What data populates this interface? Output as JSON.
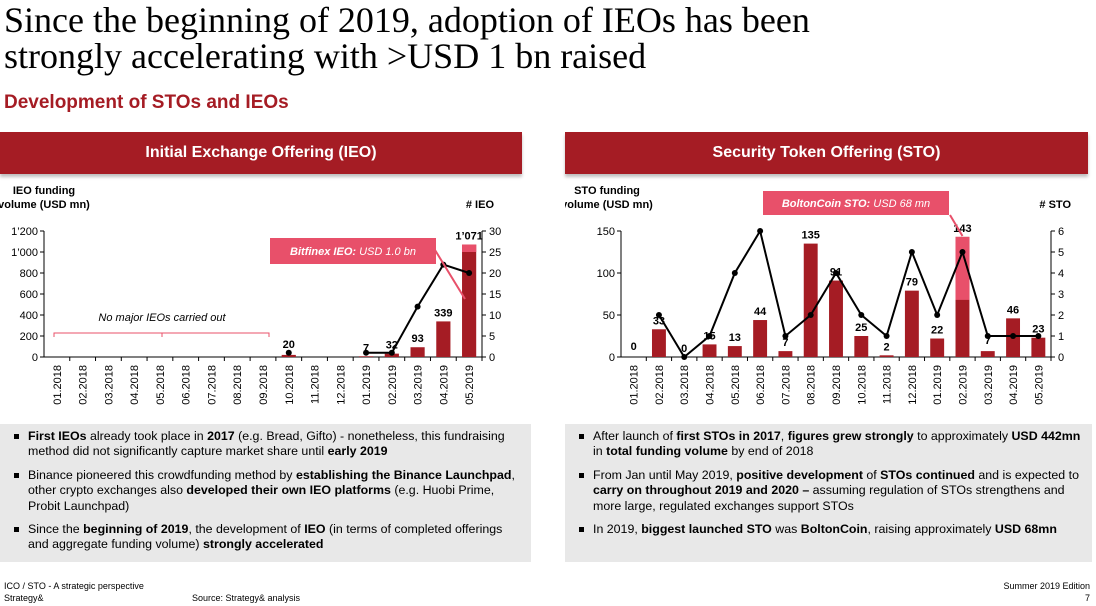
{
  "page": {
    "title_line1": "Since the beginning of 2019, adoption of IEOs has been",
    "title_line2": "strongly accelerating with >USD 1 bn raised",
    "subtitle": "Development of STOs and IEOs"
  },
  "left_panel": {
    "header": "Initial Exchange Offering (IEO)",
    "bullets": [
      [
        {
          "t": "First IEOs",
          "b": true
        },
        {
          "t": " already took place in ",
          "b": false
        },
        {
          "t": "2017",
          "b": true
        },
        {
          "t": " (e.g. Bread, Gifto) - nonetheless, this fundraising method did not significantly capture market share until ",
          "b": false
        },
        {
          "t": "early 2019",
          "b": true
        }
      ],
      [
        {
          "t": "Binance pioneered this crowdfunding method by ",
          "b": false
        },
        {
          "t": "establishing the Binance Launchpad",
          "b": true
        },
        {
          "t": ", other crypto exchanges also ",
          "b": false
        },
        {
          "t": "developed their own IEO platforms",
          "b": true
        },
        {
          "t": " (e.g. Huobi Prime, Probit Launchpad)",
          "b": false
        }
      ],
      [
        {
          "t": "Since the ",
          "b": false
        },
        {
          "t": "beginning of 2019",
          "b": true
        },
        {
          "t": ", the development of ",
          "b": false
        },
        {
          "t": "IEO",
          "b": true
        },
        {
          "t": " (in terms of completed offerings and aggregate funding volume) ",
          "b": false
        },
        {
          "t": "strongly accelerated",
          "b": true
        }
      ]
    ]
  },
  "right_panel": {
    "header": "Security Token Offering (STO)",
    "bullets": [
      [
        {
          "t": "After launch of ",
          "b": false
        },
        {
          "t": "first STOs in 2017",
          "b": true
        },
        {
          "t": ", ",
          "b": false
        },
        {
          "t": "figures grew strongly",
          "b": true
        },
        {
          "t": " to approximately ",
          "b": false
        },
        {
          "t": "USD 442mn",
          "b": true
        },
        {
          "t": " in ",
          "b": false
        },
        {
          "t": "total funding volume",
          "b": true
        },
        {
          "t": " by end of 2018",
          "b": false
        }
      ],
      [
        {
          "t": "From Jan until May 2019, ",
          "b": false
        },
        {
          "t": "positive development",
          "b": true
        },
        {
          "t": " of ",
          "b": false
        },
        {
          "t": "STOs continued",
          "b": true
        },
        {
          "t": " and is expected to ",
          "b": false
        },
        {
          "t": "carry on throughout 2019 and 2020 –",
          "b": true
        },
        {
          "t": " assuming regulation of STOs strengthens and more large, regulated exchanges support STOs",
          "b": false
        }
      ],
      [
        {
          "t": "In 2019, ",
          "b": false
        },
        {
          "t": "biggest launched STO",
          "b": true
        },
        {
          "t": " was ",
          "b": false
        },
        {
          "t": "BoltonCoin",
          "b": true
        },
        {
          "t": ", raising approximately ",
          "b": false
        },
        {
          "t": "USD 68mn",
          "b": true
        }
      ]
    ]
  },
  "footer": {
    "left_line1": "ICO / STO - A strategic perspective",
    "left_line2": "Strategy&",
    "source": "Source: Strategy& analysis",
    "edition": "Summer 2019 Edition",
    "page_number": "7"
  },
  "colors": {
    "accent": "#a51c24",
    "highlight": "#e8506a",
    "bar": "#a51c24",
    "line": "#000000"
  },
  "chart_data": [
    {
      "type": "bar",
      "id": "ieo",
      "ylabel_line1": "IEO funding",
      "ylabel_line2": "volume (USD mn)",
      "y2label": "# IEO",
      "categories": [
        "01.2018",
        "02.2018",
        "03.2018",
        "04.2018",
        "05.2018",
        "06.2018",
        "07.2018",
        "08.2018",
        "09.2018",
        "10.2018",
        "11.2018",
        "12.2018",
        "01.2019",
        "02.2019",
        "03.2019",
        "04.2019",
        "05.2019"
      ],
      "values": [
        null,
        null,
        null,
        null,
        null,
        null,
        null,
        null,
        null,
        20,
        null,
        null,
        7,
        32,
        93,
        339,
        1071
      ],
      "highlight_values": [
        null,
        null,
        null,
        null,
        null,
        null,
        null,
        null,
        null,
        null,
        null,
        null,
        null,
        null,
        null,
        null,
        1000
      ],
      "count_values": [
        null,
        null,
        null,
        null,
        null,
        null,
        null,
        null,
        null,
        1,
        null,
        null,
        1,
        1,
        12,
        22,
        20
      ],
      "data_labels": [
        "",
        "",
        "",
        "",
        "",
        "",
        "",
        "",
        "",
        "20",
        "",
        "",
        "7",
        "32",
        "93",
        "339",
        "1’071"
      ],
      "ylim": [
        0,
        1200
      ],
      "yticks": [
        0,
        200,
        400,
        600,
        800,
        1000,
        1200
      ],
      "ytick_labels": [
        "0",
        "200",
        "400",
        "600",
        "800",
        "1’000",
        "1’200"
      ],
      "y2lim": [
        0,
        30
      ],
      "y2ticks": [
        0,
        5,
        10,
        15,
        20,
        25,
        30
      ],
      "annotations": {
        "no_ieo_text": "No major IEOs carried out",
        "callout_bold": "Bitfinex IEO:",
        "callout_text": " USD 1.0 bn"
      }
    },
    {
      "type": "bar",
      "id": "sto",
      "ylabel_line1": "STO funding",
      "ylabel_line2": "volume (USD mn)",
      "y2label": "# STO",
      "categories": [
        "01.2018",
        "02.2018",
        "03.2018",
        "04.2018",
        "05.2018",
        "06.2018",
        "07.2018",
        "08.2018",
        "09.2018",
        "10.2018",
        "11.2018",
        "12.2018",
        "01.2019",
        "02.2019",
        "03.2019",
        "04.2019",
        "05.2019"
      ],
      "values": [
        0,
        33,
        0,
        15,
        13,
        44,
        7,
        135,
        91,
        25,
        2,
        79,
        22,
        143,
        7,
        46,
        23
      ],
      "highlight_values": [
        null,
        null,
        null,
        null,
        null,
        null,
        null,
        null,
        null,
        null,
        null,
        null,
        null,
        68,
        null,
        null,
        null
      ],
      "count_values": [
        null,
        2,
        0,
        1,
        4,
        6,
        1,
        2,
        4,
        2,
        1,
        5,
        2,
        5,
        1,
        1,
        1
      ],
      "data_labels": [
        "0",
        "33",
        "0",
        "15",
        "13",
        "44",
        "7",
        "135",
        "91",
        "25",
        "2",
        "79",
        "22",
        "143",
        "7",
        "46",
        "23"
      ],
      "ylim": [
        0,
        150
      ],
      "yticks": [
        0,
        50,
        100,
        150
      ],
      "ytick_labels": [
        "0",
        "50",
        "100",
        "150"
      ],
      "y2lim": [
        0,
        6
      ],
      "y2ticks": [
        0,
        1,
        2,
        3,
        4,
        5,
        6
      ],
      "annotations": {
        "callout_bold": "BoltonCoin STO:",
        "callout_text": " USD 68 mn"
      }
    }
  ]
}
